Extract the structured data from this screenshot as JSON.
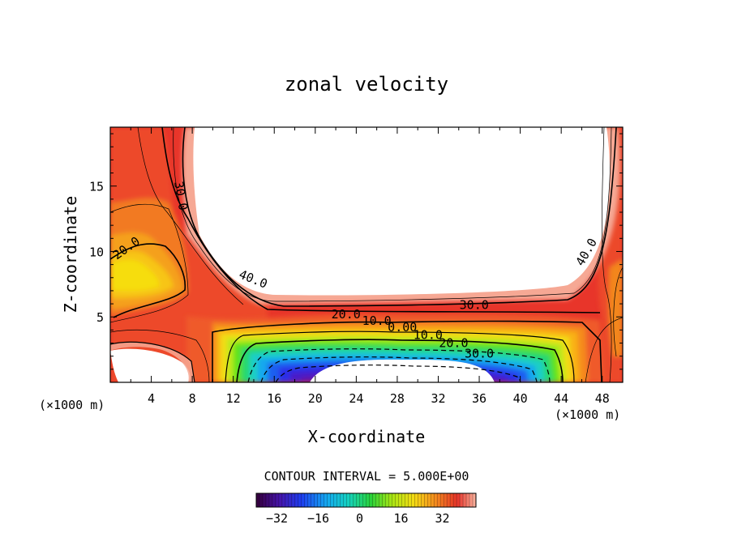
{
  "chart_data": {
    "type": "heatmap",
    "title": "zonal velocity",
    "xlabel": "X-coordinate",
    "ylabel": "Z-coordinate",
    "x_unit_left": "(×1000 m)",
    "x_unit_right": "(×1000 m)",
    "xlim": [
      0,
      50
    ],
    "ylim": [
      0,
      19.5
    ],
    "x_ticks": [
      4,
      8,
      12,
      16,
      20,
      24,
      28,
      32,
      36,
      40,
      44,
      48
    ],
    "y_ticks": [
      5,
      10,
      15
    ],
    "contour_interval_text": "CONTOUR INTERVAL = 5.000E+00",
    "contour_labels": [
      {
        "text": "30.0",
        "x": 6.5,
        "y": 14.2,
        "rotate": 80
      },
      {
        "text": "20.0",
        "x": 1.8,
        "y": 10.0,
        "rotate": -35
      },
      {
        "text": "40.0",
        "x": 13.8,
        "y": 7.6,
        "rotate": 22
      },
      {
        "text": "40.0",
        "x": 46.8,
        "y": 9.8,
        "rotate": -60
      },
      {
        "text": "30.0",
        "x": 35.5,
        "y": 5.6,
        "rotate": 0
      },
      {
        "text": "20.0",
        "x": 23.0,
        "y": 4.9,
        "rotate": 0
      },
      {
        "text": "10.0",
        "x": 26.0,
        "y": 4.4,
        "rotate": 0
      },
      {
        "text": "0.00",
        "x": 28.5,
        "y": 3.9,
        "rotate": 0
      },
      {
        "text": "10.0",
        "x": 31.0,
        "y": 3.3,
        "rotate": 0
      },
      {
        "text": "20.0",
        "x": 33.5,
        "y": 2.7,
        "rotate": 0
      },
      {
        "text": "30.0",
        "x": 36.0,
        "y": 1.9,
        "rotate": 0
      }
    ],
    "colorbar": {
      "min": -40,
      "max": 45,
      "ticks": [
        -32,
        -16,
        0,
        16,
        32
      ]
    }
  }
}
